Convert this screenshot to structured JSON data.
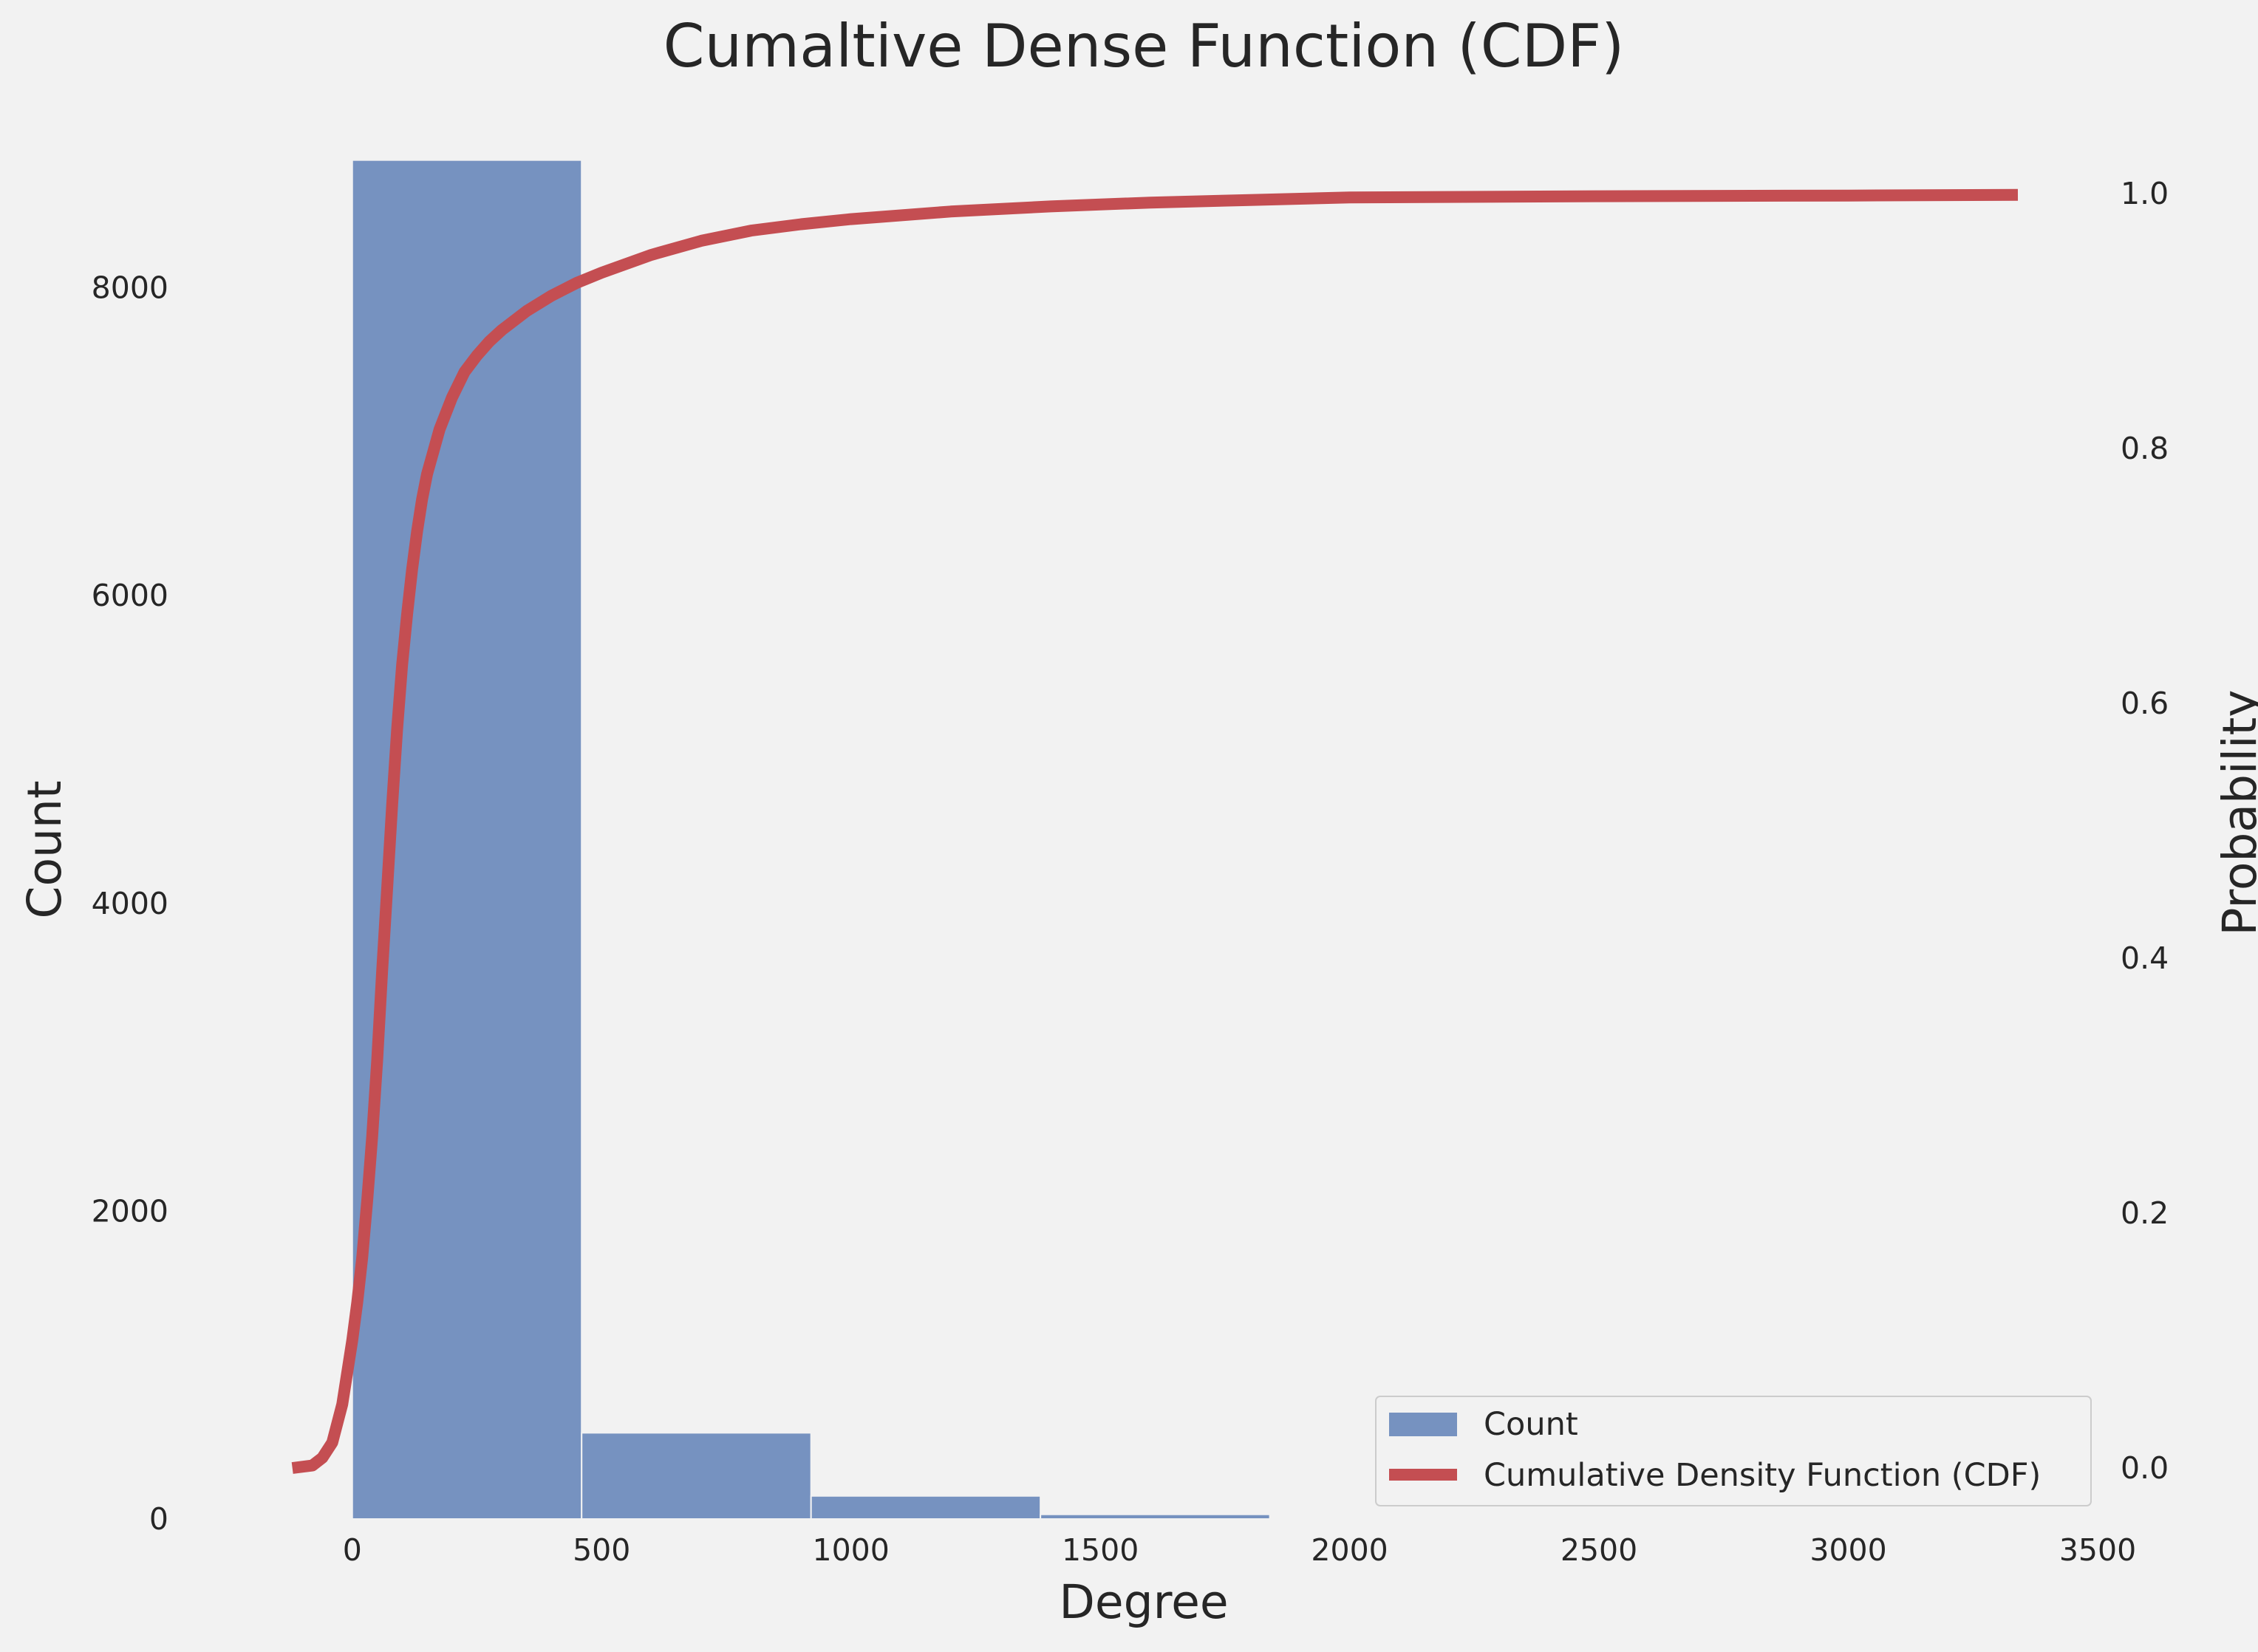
{
  "chart_data": {
    "type": "bar",
    "title": "Cumaltive Dense Function (CDF)",
    "xlabel": "Degree",
    "ylabel": "Count",
    "y2label": "Probability",
    "xlim": [
      -170,
      3500
    ],
    "ylim": [
      0,
      9150
    ],
    "y2lim": [
      -0.04,
      1.065
    ],
    "xticks": [
      "0",
      "500",
      "1000",
      "1500",
      "2000",
      "2500",
      "3000",
      "3500"
    ],
    "xtick_values": [
      0,
      500,
      1000,
      1500,
      2000,
      2500,
      3000,
      3500
    ],
    "yticks": [
      "0",
      "2000",
      "4000",
      "6000",
      "8000"
    ],
    "ytick_values": [
      0,
      2000,
      4000,
      6000,
      8000
    ],
    "y2ticks": [
      "0.0",
      "0.2",
      "0.4",
      "0.6",
      "0.8",
      "1.0"
    ],
    "y2tick_values": [
      0.0,
      0.2,
      0.4,
      0.6,
      0.8,
      1.0
    ],
    "grid": false,
    "legend_position": "lower-right",
    "colors": {
      "bars": "#7692c0",
      "cdf": "#c44e52"
    },
    "series": [
      {
        "name": "Count",
        "type": "bar",
        "bins": [
          {
            "start": 0,
            "end": 460,
            "value": 8830
          },
          {
            "start": 460,
            "end": 920,
            "value": 560
          },
          {
            "start": 920,
            "end": 1380,
            "value": 150
          },
          {
            "start": 1380,
            "end": 1840,
            "value": 30
          }
        ]
      },
      {
        "name": "Cumulative Density Function (CDF)",
        "type": "line",
        "x": [
          -120,
          -80,
          -60,
          -40,
          -20,
          0,
          10,
          20,
          30,
          40,
          50,
          60,
          70,
          80,
          90,
          100,
          110,
          120,
          130,
          140,
          150,
          175,
          200,
          225,
          250,
          275,
          300,
          350,
          400,
          450,
          500,
          600,
          700,
          800,
          900,
          1000,
          1200,
          1400,
          1600,
          1800,
          2000,
          2500,
          3000,
          3340
        ],
        "y": [
          0.0,
          0.002,
          0.008,
          0.02,
          0.05,
          0.1,
          0.13,
          0.165,
          0.21,
          0.26,
          0.32,
          0.39,
          0.455,
          0.52,
          0.58,
          0.63,
          0.67,
          0.705,
          0.735,
          0.76,
          0.78,
          0.815,
          0.84,
          0.86,
          0.873,
          0.884,
          0.893,
          0.908,
          0.92,
          0.93,
          0.938,
          0.952,
          0.963,
          0.971,
          0.976,
          0.98,
          0.986,
          0.99,
          0.993,
          0.995,
          0.997,
          0.998,
          0.9985,
          0.999
        ]
      }
    ]
  }
}
